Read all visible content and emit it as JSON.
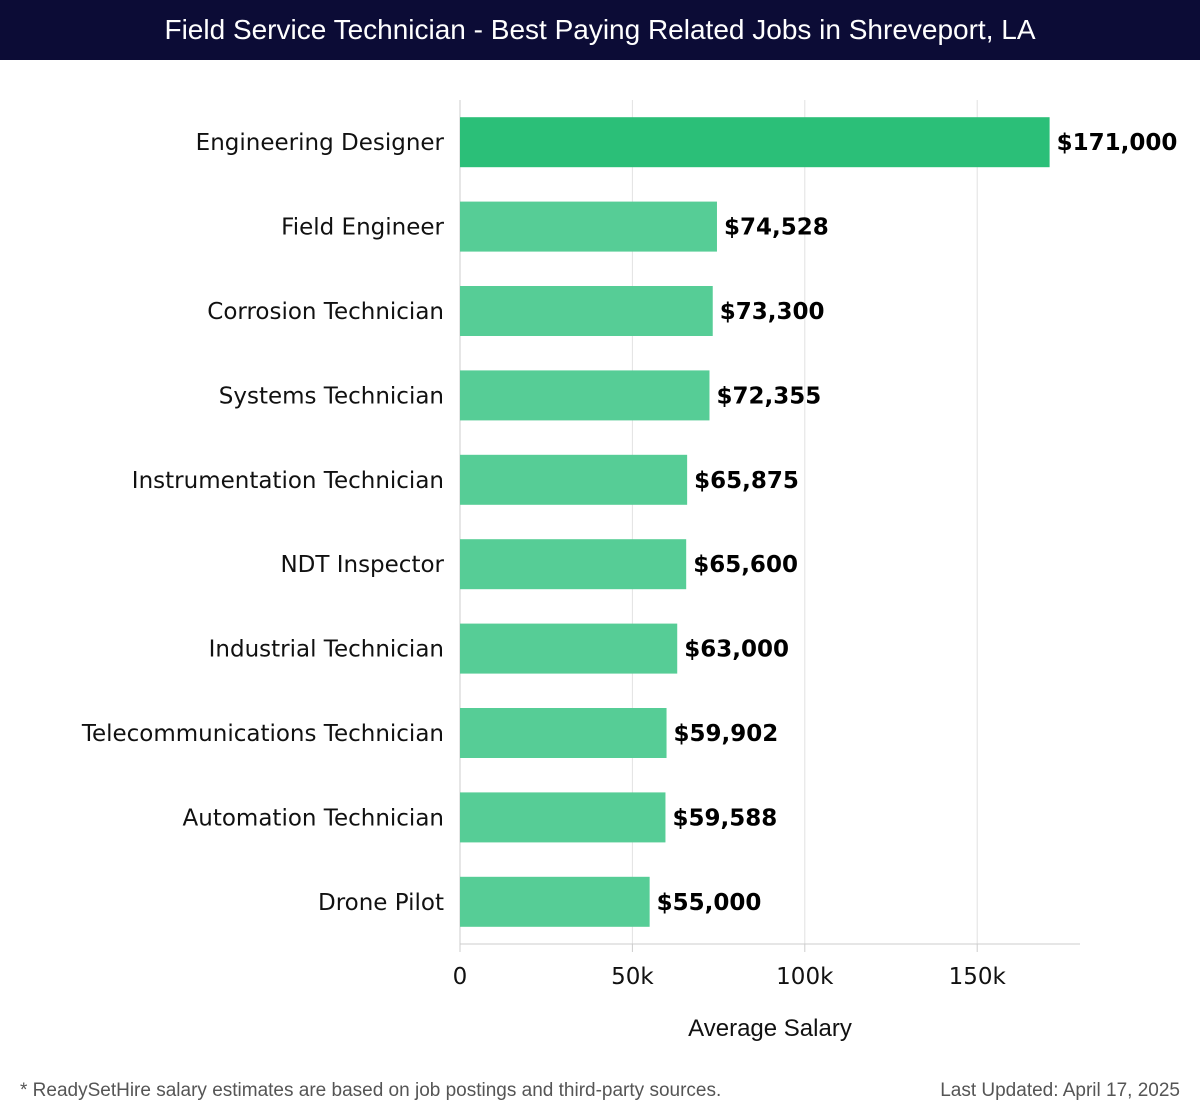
{
  "header": {
    "title": "Field Service Technician - Best Paying Related Jobs in Shreveport, LA"
  },
  "colors": {
    "header_bg": "#0c0c36",
    "top_bar": "#2bbf78",
    "bar": "#56cd96",
    "grid": "#e2e2e2",
    "axis": "#cccccc"
  },
  "chart_data": {
    "type": "bar",
    "orientation": "horizontal",
    "title": "Field Service Technician - Best Paying Related Jobs in Shreveport, LA",
    "categories": [
      "Engineering Designer",
      "Field Engineer",
      "Corrosion Technician",
      "Systems Technician",
      "Instrumentation Technician",
      "NDT Inspector",
      "Industrial Technician",
      "Telecommunications Technician",
      "Automation Technician",
      "Drone Pilot"
    ],
    "values": [
      171000,
      74528,
      73300,
      72355,
      65875,
      65600,
      63000,
      59902,
      59588,
      55000
    ],
    "value_labels": [
      "$171,000",
      "$74,528",
      "$73,300",
      "$72,355",
      "$65,875",
      "$65,600",
      "$63,000",
      "$59,902",
      "$59,588",
      "$55,000"
    ],
    "xlabel": "Average Salary",
    "ylabel": "",
    "xlim": [
      0,
      180000
    ],
    "xticks": [
      0,
      50000,
      100000,
      150000
    ],
    "xtick_labels": [
      "0",
      "50k",
      "100k",
      "150k"
    ],
    "grid": true
  },
  "footer": {
    "note": "* ReadySetHire salary estimates are based on job postings and third-party sources.",
    "updated": "Last Updated: April 17, 2025"
  }
}
